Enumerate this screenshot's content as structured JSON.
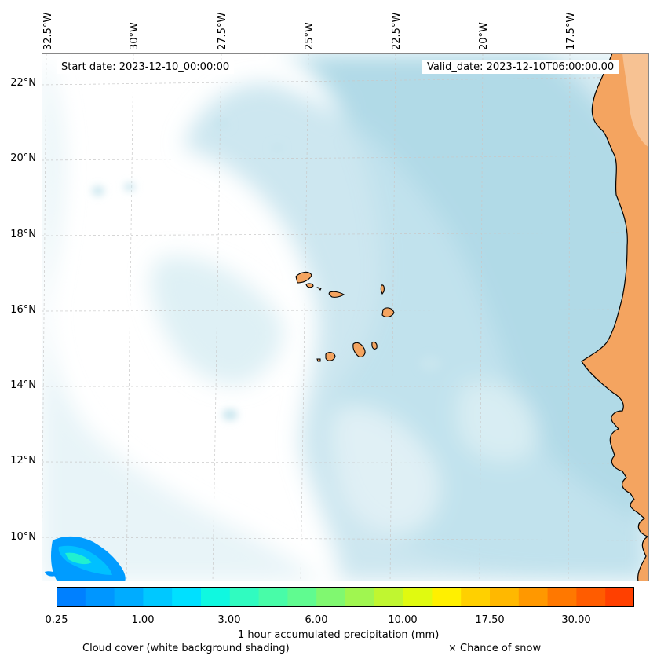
{
  "map": {
    "start_date_text": "Start date: 2023-12-10_00:00:00",
    "valid_date_text": "Valid_date: 2023-12-10T06:00:00.00",
    "lon_labels": [
      "32.5°W",
      "30°W",
      "27.5°W",
      "25°W",
      "22.5°W",
      "20°W",
      "17.5°W"
    ],
    "lat_labels": [
      "22°N",
      "20°N",
      "18°N",
      "16°N",
      "14°N",
      "12°N",
      "10°N"
    ],
    "colors": {
      "ocean_cloud": "#add8e6",
      "land": "#f4a460",
      "coast": "#000000",
      "grid": "#c8c8c8"
    }
  },
  "colorbar": {
    "label": "1 hour accumulated precipitation (mm)",
    "tick_labels": [
      "0.25",
      "1.00",
      "3.00",
      "6.00",
      "10.00",
      "17.50",
      "30.00"
    ],
    "colors": [
      "#0080ff",
      "#0096ff",
      "#00acff",
      "#00c8ff",
      "#00e0ff",
      "#10f8e0",
      "#30fbc0",
      "#48fca8",
      "#60fb90",
      "#80f870",
      "#a0f650",
      "#c0f630",
      "#e0fa10",
      "#fff000",
      "#ffd000",
      "#ffb800",
      "#ff9800",
      "#ff7800",
      "#ff5c00",
      "#ff4000"
    ]
  },
  "captions": {
    "cloud_cover": "Cloud cover (white background shading)",
    "snow": "× Chance of snow"
  }
}
